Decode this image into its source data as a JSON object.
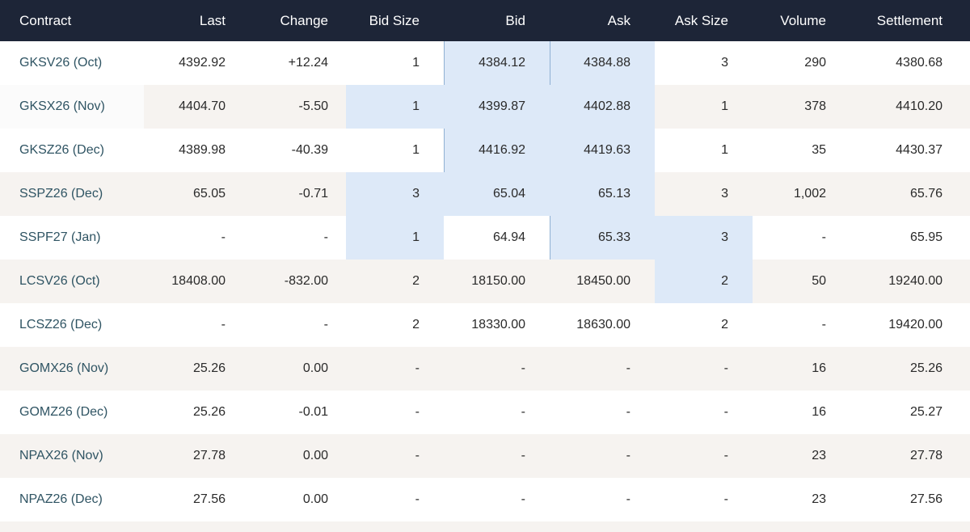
{
  "columns": [
    "Contract",
    "Last",
    "Change",
    "Bid Size",
    "Bid",
    "Ask",
    "Ask Size",
    "Volume",
    "Settlement"
  ],
  "rows": [
    {
      "contract": "GKSV26 (Oct)",
      "last": "4392.92",
      "change": "+12.24",
      "bid_size": "1",
      "bid": "4384.12",
      "ask": "4384.88",
      "ask_size": "3",
      "volume": "290",
      "settlement": "4380.68"
    },
    {
      "contract": "GKSX26 (Nov)",
      "last": "4404.70",
      "change": "-5.50",
      "bid_size": "1",
      "bid": "4399.87",
      "ask": "4402.88",
      "ask_size": "1",
      "volume": "378",
      "settlement": "4410.20"
    },
    {
      "contract": "GKSZ26 (Dec)",
      "last": "4389.98",
      "change": "-40.39",
      "bid_size": "1",
      "bid": "4416.92",
      "ask": "4419.63",
      "ask_size": "1",
      "volume": "35",
      "settlement": "4430.37"
    },
    {
      "contract": "SSPZ26 (Dec)",
      "last": "65.05",
      "change": "-0.71",
      "bid_size": "3",
      "bid": "65.04",
      "ask": "65.13",
      "ask_size": "3",
      "volume": "1,002",
      "settlement": "65.76"
    },
    {
      "contract": "SSPF27 (Jan)",
      "last": "-",
      "change": "-",
      "bid_size": "1",
      "bid": "64.94",
      "ask": "65.33",
      "ask_size": "3",
      "volume": "-",
      "settlement": "65.95"
    },
    {
      "contract": "LCSV26 (Oct)",
      "last": "18408.00",
      "change": "-832.00",
      "bid_size": "2",
      "bid": "18150.00",
      "ask": "18450.00",
      "ask_size": "2",
      "volume": "50",
      "settlement": "19240.00"
    },
    {
      "contract": "LCSZ26 (Dec)",
      "last": "-",
      "change": "-",
      "bid_size": "2",
      "bid": "18330.00",
      "ask": "18630.00",
      "ask_size": "2",
      "volume": "-",
      "settlement": "19420.00"
    },
    {
      "contract": "GOMX26 (Nov)",
      "last": "25.26",
      "change": "0.00",
      "bid_size": "-",
      "bid": "-",
      "ask": "-",
      "ask_size": "-",
      "volume": "16",
      "settlement": "25.26"
    },
    {
      "contract": "GOMZ26 (Dec)",
      "last": "25.26",
      "change": "-0.01",
      "bid_size": "-",
      "bid": "-",
      "ask": "-",
      "ask_size": "-",
      "volume": "16",
      "settlement": "25.27"
    },
    {
      "contract": "NPAX26 (Nov)",
      "last": "27.78",
      "change": "0.00",
      "bid_size": "-",
      "bid": "-",
      "ask": "-",
      "ask_size": "-",
      "volume": "23",
      "settlement": "27.78"
    },
    {
      "contract": "NPAZ26 (Dec)",
      "last": "27.56",
      "change": "0.00",
      "bid_size": "-",
      "bid": "-",
      "ask": "-",
      "ask_size": "-",
      "volume": "23",
      "settlement": "27.56"
    }
  ],
  "colors": {
    "header_bg": "#1d2537",
    "header_text": "#ffffff",
    "stripe": "#f6f3f0",
    "highlight": "#dde9f8",
    "contract_text": "#2f5463"
  }
}
